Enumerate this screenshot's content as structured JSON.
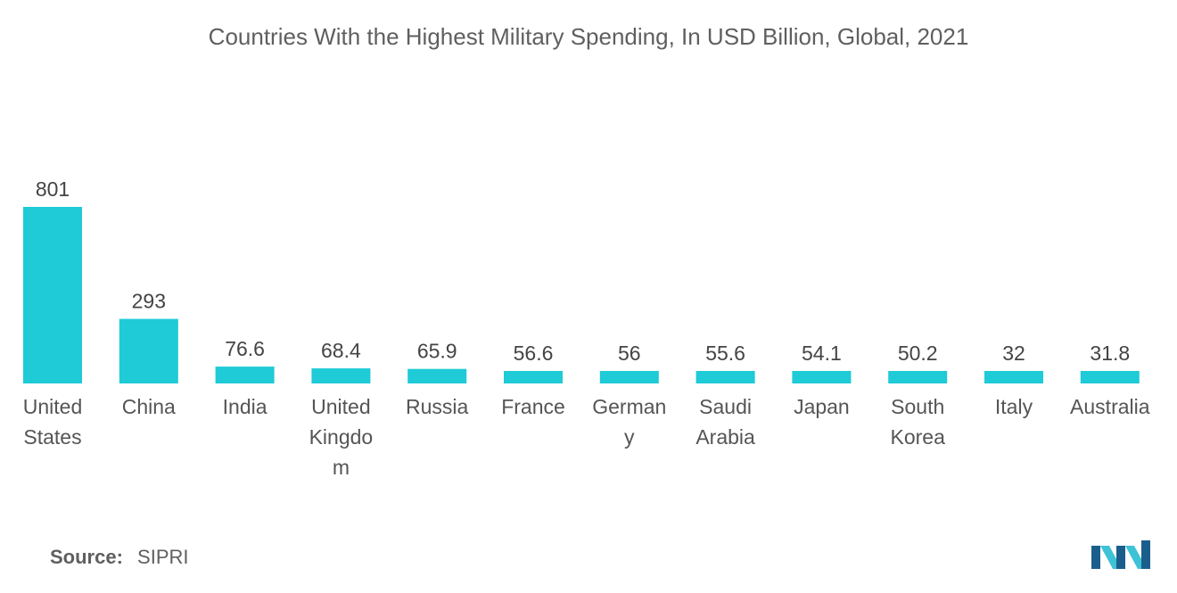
{
  "chart_data": {
    "type": "bar",
    "title": "Countries With the Highest Military Spending, In USD Billion, Global, 2021",
    "categories": [
      [
        "United",
        "States"
      ],
      [
        "China"
      ],
      [
        "India"
      ],
      [
        "United",
        "Kingdo",
        "m"
      ],
      [
        "Russia"
      ],
      [
        "France"
      ],
      [
        "German",
        "y"
      ],
      [
        "Saudi",
        "Arabia"
      ],
      [
        "Japan"
      ],
      [
        "South",
        "Korea"
      ],
      [
        "Italy"
      ],
      [
        "Australia"
      ]
    ],
    "values": [
      801,
      293,
      76.6,
      68.4,
      65.9,
      56.6,
      56,
      55.6,
      54.1,
      50.2,
      32,
      31.8
    ],
    "value_labels": [
      "801",
      "293",
      "76.6",
      "68.4",
      "65.9",
      "56.6",
      "56",
      "55.6",
      "54.1",
      "50.2",
      "32",
      "31.8"
    ],
    "xlabel": "",
    "ylabel": "",
    "ylim": [
      0,
      801
    ],
    "grid": false,
    "legend": "none",
    "bar_color": "#1ecbd6"
  },
  "source": {
    "label": "Source:",
    "value": "SIPRI"
  },
  "logo": {
    "icon": "mordor-intelligence-logo",
    "colors": [
      "#1a5e8c",
      "#3ec2d6"
    ]
  }
}
